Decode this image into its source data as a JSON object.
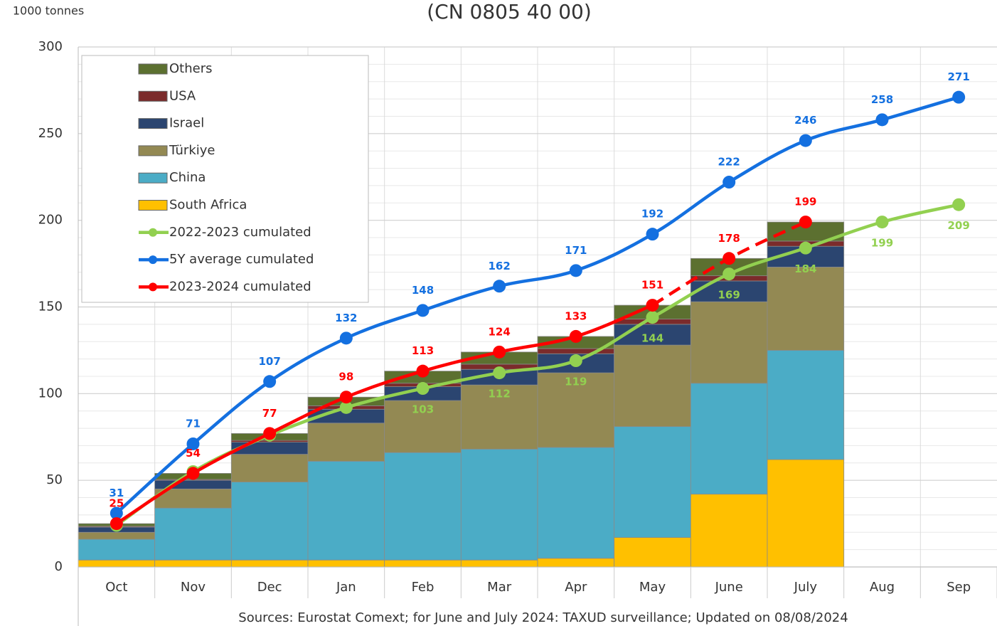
{
  "chart_data": {
    "type": "stacked_bar_line",
    "title": "(CN 0805 40 00)",
    "y_axis_label": "1000 tonnes",
    "source": "Sources: Eurostat Comext; for June and July 2024: TAXUD surveillance; Updated on 08/08/2024",
    "categories": [
      "Oct",
      "Nov",
      "Dec",
      "Jan",
      "Feb",
      "Mar",
      "Apr",
      "May",
      "June",
      "July",
      "Aug",
      "Sep"
    ],
    "ylim": [
      0,
      300
    ],
    "yticks": [
      0,
      50,
      100,
      150,
      200,
      250,
      300
    ],
    "minor_yticks": [
      10,
      20,
      30,
      40,
      60,
      70,
      80,
      90,
      110,
      120,
      130,
      140,
      160,
      170,
      180,
      190,
      210,
      220,
      230,
      240,
      260,
      270,
      280,
      290
    ],
    "grid": true,
    "legend": "upper left",
    "series": [
      {
        "name": "South Africa",
        "type": "bar",
        "color": "#ffc000",
        "values": [
          4,
          4,
          4,
          4,
          4,
          4,
          5,
          17,
          42,
          62,
          null,
          null
        ]
      },
      {
        "name": "China",
        "type": "bar",
        "color": "#4bacc6",
        "values": [
          12,
          30,
          45,
          57,
          62,
          64,
          64,
          64,
          64,
          63,
          null,
          null
        ]
      },
      {
        "name": "Türkiye",
        "type": "bar",
        "color": "#938953",
        "values": [
          4,
          11,
          16,
          22,
          30,
          37,
          43,
          47,
          47,
          48,
          null,
          null
        ]
      },
      {
        "name": "Israel",
        "type": "bar",
        "color": "#2b4570",
        "values": [
          3,
          5,
          7,
          8,
          8,
          9,
          11,
          12,
          12,
          12,
          null,
          null
        ]
      },
      {
        "name": "USA",
        "type": "bar",
        "color": "#7b2b2b",
        "values": [
          0.5,
          0.5,
          1,
          2,
          2,
          3,
          3,
          3,
          3,
          3,
          null,
          null
        ]
      },
      {
        "name": "Others",
        "type": "bar",
        "color": "#5c7030",
        "values": [
          1.5,
          3.5,
          4,
          5,
          7,
          7,
          7,
          8,
          10,
          11,
          null,
          null
        ]
      },
      {
        "name": "2022-2023 cumulated",
        "type": "line",
        "color": "#92d050",
        "label_side": "below",
        "values": [
          24,
          55,
          76,
          92,
          103,
          112,
          119,
          144,
          169,
          184,
          199,
          209
        ],
        "value_labels": [
          null,
          null,
          null,
          null,
          "103",
          "112",
          "119",
          "144",
          "169",
          "184",
          "199",
          "209"
        ]
      },
      {
        "name": "5Y average cumulated",
        "type": "line",
        "color": "#1470e0",
        "label_side": "above",
        "values": [
          31,
          71,
          107,
          132,
          148,
          162,
          171,
          192,
          222,
          246,
          258,
          271
        ]
      },
      {
        "name": "2023-2024 cumulated",
        "type": "line",
        "color": "#ff0000",
        "label_side": "above",
        "dashed_from": "May",
        "values": [
          25,
          54,
          77,
          98,
          113,
          124,
          133,
          151,
          178,
          199,
          null,
          null
        ]
      }
    ]
  }
}
